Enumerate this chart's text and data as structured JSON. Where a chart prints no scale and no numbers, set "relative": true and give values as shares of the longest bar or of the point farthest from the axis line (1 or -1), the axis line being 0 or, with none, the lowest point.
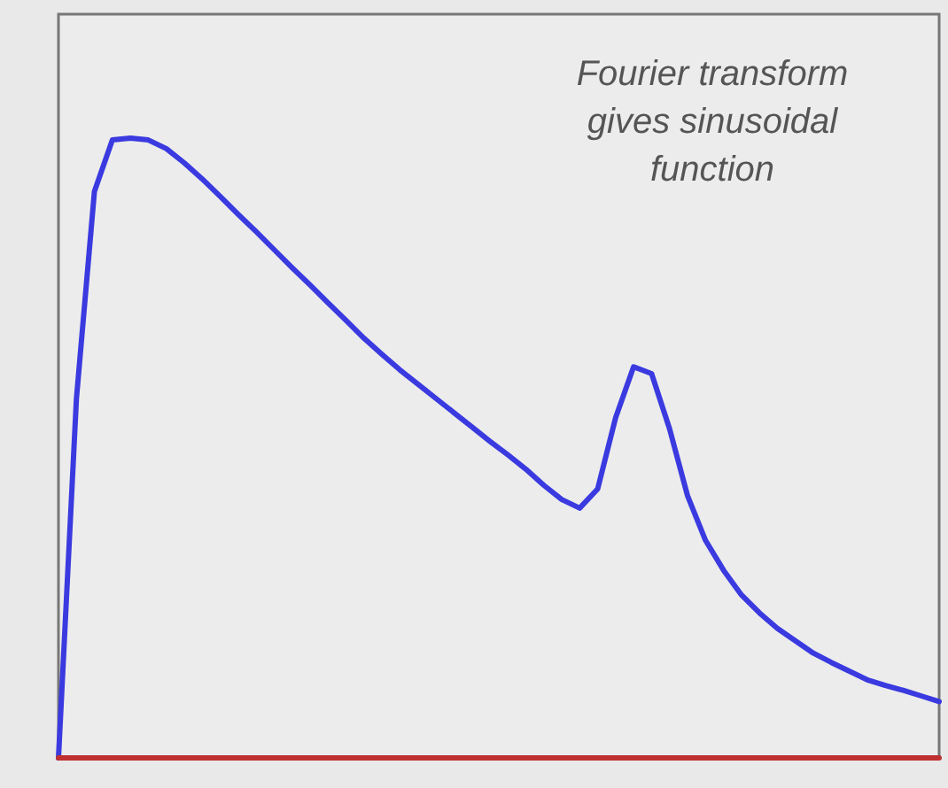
{
  "chart_data": {
    "type": "line",
    "relative": true,
    "line_style": "solid",
    "annotations": [
      "Fourier transform gives sinusoidal function"
    ],
    "categories": [
      null,
      null,
      null,
      null,
      null,
      null,
      null,
      null,
      null,
      null,
      null,
      null,
      null,
      null,
      null,
      null,
      null,
      null,
      null,
      null,
      null,
      null,
      null,
      null,
      null,
      null,
      null,
      null,
      null,
      null,
      null,
      null,
      null,
      null,
      null,
      null,
      null,
      null,
      null,
      null,
      null,
      null,
      null,
      null,
      null,
      null,
      null,
      null,
      null,
      null
    ],
    "series": [
      {
        "color": "#3a3ae0",
        "values": [
          0,
          0.58,
          0.914,
          0.997,
          1,
          0.997,
          0.983,
          0.96,
          0.934,
          0.906,
          0.877,
          0.849,
          0.82,
          0.791,
          0.763,
          0.734,
          0.706,
          0.677,
          0.651,
          0.626,
          0.603,
          0.58,
          0.557,
          0.534,
          0.511,
          0.489,
          0.466,
          0.44,
          0.417,
          0.403,
          0.434,
          0.549,
          0.631,
          0.62,
          0.531,
          0.423,
          0.351,
          0.303,
          0.263,
          0.234,
          0.209,
          0.189,
          0.169,
          0.154,
          0.14,
          0.126,
          0.117,
          0.109,
          0.1,
          0.091
        ]
      },
      {
        "color": "#c03030",
        "values": [
          0,
          0,
          0,
          0,
          0,
          0,
          0,
          0,
          0,
          0,
          0,
          0,
          0,
          0,
          0,
          0,
          0,
          0,
          0,
          0,
          0,
          0,
          0,
          0,
          0,
          0,
          0,
          0,
          0,
          0,
          0,
          0,
          0,
          0,
          0,
          0,
          0,
          0,
          0,
          0,
          0,
          0,
          0,
          0,
          0,
          0,
          0,
          0,
          0,
          0
        ]
      }
    ]
  }
}
